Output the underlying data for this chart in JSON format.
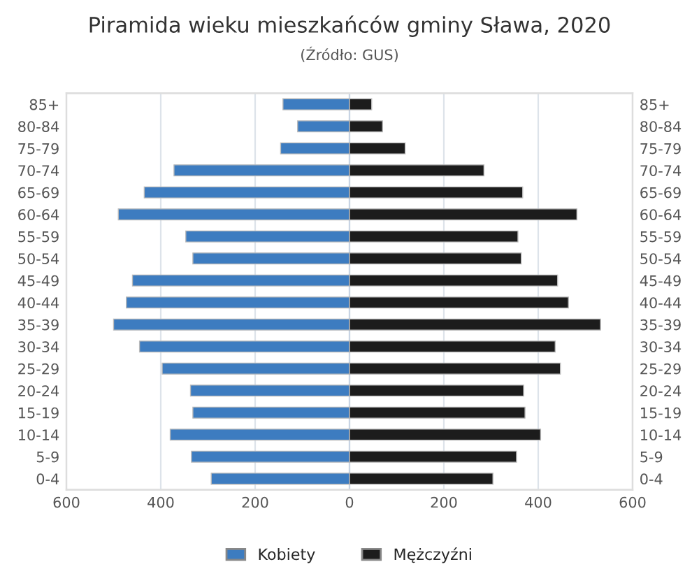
{
  "chart_data": {
    "type": "bar",
    "orientation": "horizontal",
    "title": "Piramida wieku mieszkańców gminy Sława, 2020",
    "subtitle": "(Źródło: GUS)",
    "categories": [
      "85+",
      "80-84",
      "75-79",
      "70-74",
      "65-69",
      "60-64",
      "55-59",
      "50-54",
      "45-49",
      "40-44",
      "35-39",
      "30-34",
      "25-29",
      "20-24",
      "15-19",
      "10-14",
      "5-9",
      "0-4"
    ],
    "series": [
      {
        "name": "Kobiety",
        "color": "#3d7cc0",
        "values": [
          -141,
          -110,
          -146,
          -372,
          -435,
          -490,
          -347,
          -332,
          -460,
          -473,
          -500,
          -445,
          -397,
          -337,
          -332,
          -380,
          -335,
          -293
        ]
      },
      {
        "name": "Mężczyźni",
        "color": "#1c1c1c",
        "values": [
          47,
          70,
          118,
          285,
          367,
          482,
          357,
          364,
          441,
          464,
          532,
          436,
          447,
          369,
          372,
          405,
          354,
          304
        ]
      }
    ],
    "xlim": [
      -600,
      600
    ],
    "xticks": [
      {
        "value": -600,
        "label": "600"
      },
      {
        "value": -400,
        "label": "400"
      },
      {
        "value": -200,
        "label": "200"
      },
      0,
      200,
      400,
      600
    ],
    "stacked": true,
    "grid": "x",
    "legend": "bottom"
  }
}
